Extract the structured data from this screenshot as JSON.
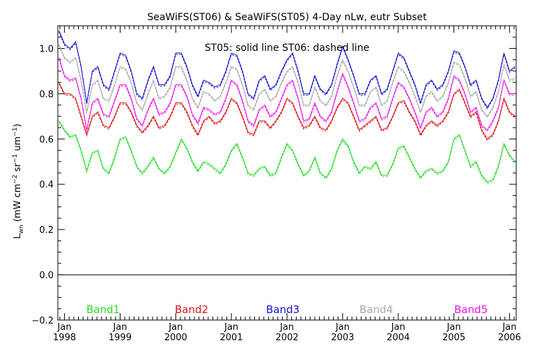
{
  "chart_data": {
    "type": "line",
    "title": "SeaWiFS(ST06) & SeaWiFS(ST05) 4-Day nLw, eutr Subset",
    "ylabel_main": "L",
    "ylabel_sub": "wn",
    "ylabel_rest": " (mW cm",
    "ylabel_exp1": "−2",
    "ylabel_mid": " sr",
    "ylabel_exp2": "−1",
    "ylabel_mid2": " um",
    "ylabel_exp3": "−1",
    "ylabel_end": ")",
    "annotation": "ST05: solid line    ST06: dashed line",
    "ylim": [
      -0.2,
      1.1
    ],
    "xlim": [
      1997.88,
      2006.12
    ],
    "y_ticks": [
      "1.0",
      "0.8",
      "0.6",
      "0.4",
      "0.2",
      "0.0",
      "−0.2"
    ],
    "x_ticks": [
      {
        "month": "Jan",
        "year": "1998"
      },
      {
        "month": "Jan",
        "year": "1999"
      },
      {
        "month": "Jan",
        "year": "2000"
      },
      {
        "month": "Jan",
        "year": "2001"
      },
      {
        "month": "Jan",
        "year": "2002"
      },
      {
        "month": "Jan",
        "year": "2003"
      },
      {
        "month": "Jan",
        "year": "2004"
      },
      {
        "month": "Jan",
        "year": "2005"
      },
      {
        "month": "Jan",
        "year": "2006"
      }
    ],
    "grid": false,
    "legend_position": "bottom",
    "series": [
      {
        "name": "Band1",
        "color": "#22dd22",
        "x": [
          1997.9,
          1998.0,
          1998.1,
          1998.2,
          1998.3,
          1998.4,
          1998.5,
          1998.6,
          1998.7,
          1998.8,
          1998.9,
          1999.0,
          1999.1,
          1999.2,
          1999.3,
          1999.4,
          1999.5,
          1999.6,
          1999.7,
          1999.8,
          1999.9,
          2000.0,
          2000.1,
          2000.2,
          2000.3,
          2000.4,
          2000.5,
          2000.6,
          2000.7,
          2000.8,
          2000.9,
          2001.0,
          2001.1,
          2001.2,
          2001.3,
          2001.4,
          2001.5,
          2001.6,
          2001.7,
          2001.8,
          2001.9,
          2002.0,
          2002.1,
          2002.2,
          2002.3,
          2002.4,
          2002.5,
          2002.6,
          2002.7,
          2002.8,
          2002.9,
          2003.0,
          2003.1,
          2003.2,
          2003.3,
          2003.4,
          2003.5,
          2003.6,
          2003.7,
          2003.8,
          2003.9,
          2004.0,
          2004.1,
          2004.2,
          2004.3,
          2004.4,
          2004.5,
          2004.6,
          2004.7,
          2004.8,
          2004.9,
          2005.0,
          2005.1,
          2005.2,
          2005.3,
          2005.4,
          2005.5,
          2005.6,
          2005.7,
          2005.8,
          2005.9,
          2006.0,
          2006.1
        ],
        "values": [
          0.68,
          0.64,
          0.61,
          0.62,
          0.55,
          0.46,
          0.54,
          0.55,
          0.47,
          0.45,
          0.52,
          0.6,
          0.61,
          0.55,
          0.48,
          0.45,
          0.48,
          0.52,
          0.47,
          0.45,
          0.48,
          0.54,
          0.6,
          0.56,
          0.5,
          0.46,
          0.5,
          0.49,
          0.47,
          0.45,
          0.49,
          0.55,
          0.58,
          0.52,
          0.45,
          0.44,
          0.47,
          0.48,
          0.44,
          0.45,
          0.52,
          0.58,
          0.55,
          0.49,
          0.44,
          0.46,
          0.52,
          0.45,
          0.43,
          0.47,
          0.55,
          0.6,
          0.57,
          0.5,
          0.45,
          0.48,
          0.47,
          0.5,
          0.44,
          0.44,
          0.49,
          0.56,
          0.57,
          0.52,
          0.47,
          0.43,
          0.46,
          0.47,
          0.45,
          0.46,
          0.5,
          0.6,
          0.62,
          0.55,
          0.48,
          0.5,
          0.44,
          0.41,
          0.42,
          0.48,
          0.58,
          0.53,
          0.5
        ]
      },
      {
        "name": "Band2",
        "color": "#dd1111",
        "x": [
          1997.9,
          1998.0,
          1998.1,
          1998.2,
          1998.3,
          1998.4,
          1998.5,
          1998.6,
          1998.7,
          1998.8,
          1998.9,
          1999.0,
          1999.1,
          1999.2,
          1999.3,
          1999.4,
          1999.5,
          1999.6,
          1999.7,
          1999.8,
          1999.9,
          2000.0,
          2000.1,
          2000.2,
          2000.3,
          2000.4,
          2000.5,
          2000.6,
          2000.7,
          2000.8,
          2000.9,
          2001.0,
          2001.1,
          2001.2,
          2001.3,
          2001.4,
          2001.5,
          2001.6,
          2001.7,
          2001.8,
          2001.9,
          2002.0,
          2002.1,
          2002.2,
          2002.3,
          2002.4,
          2002.5,
          2002.6,
          2002.7,
          2002.8,
          2002.9,
          2003.0,
          2003.1,
          2003.2,
          2003.3,
          2003.4,
          2003.5,
          2003.6,
          2003.7,
          2003.8,
          2003.9,
          2004.0,
          2004.1,
          2004.2,
          2004.3,
          2004.4,
          2004.5,
          2004.6,
          2004.7,
          2004.8,
          2004.9,
          2005.0,
          2005.1,
          2005.2,
          2005.3,
          2005.4,
          2005.5,
          2005.6,
          2005.7,
          2005.8,
          2005.9,
          2006.0,
          2006.1
        ],
        "values": [
          0.85,
          0.8,
          0.8,
          0.78,
          0.7,
          0.62,
          0.7,
          0.72,
          0.66,
          0.65,
          0.7,
          0.76,
          0.76,
          0.72,
          0.66,
          0.63,
          0.66,
          0.7,
          0.65,
          0.66,
          0.7,
          0.76,
          0.76,
          0.72,
          0.66,
          0.62,
          0.68,
          0.7,
          0.67,
          0.68,
          0.72,
          0.78,
          0.76,
          0.7,
          0.63,
          0.62,
          0.68,
          0.68,
          0.65,
          0.68,
          0.72,
          0.78,
          0.76,
          0.7,
          0.65,
          0.66,
          0.7,
          0.65,
          0.64,
          0.68,
          0.74,
          0.78,
          0.76,
          0.7,
          0.64,
          0.66,
          0.68,
          0.7,
          0.64,
          0.65,
          0.7,
          0.76,
          0.77,
          0.72,
          0.68,
          0.62,
          0.66,
          0.68,
          0.66,
          0.68,
          0.72,
          0.8,
          0.82,
          0.76,
          0.7,
          0.72,
          0.64,
          0.6,
          0.62,
          0.68,
          0.78,
          0.72,
          0.7
        ]
      },
      {
        "name": "Band3",
        "color": "#1111cc",
        "x": [
          1997.9,
          1998.0,
          1998.1,
          1998.2,
          1998.3,
          1998.4,
          1998.5,
          1998.6,
          1998.7,
          1998.8,
          1998.9,
          1999.0,
          1999.1,
          1999.2,
          1999.3,
          1999.4,
          1999.5,
          1999.6,
          1999.7,
          1999.8,
          1999.9,
          2000.0,
          2000.1,
          2000.2,
          2000.3,
          2000.4,
          2000.5,
          2000.6,
          2000.7,
          2000.8,
          2000.9,
          2001.0,
          2001.1,
          2001.2,
          2001.3,
          2001.4,
          2001.5,
          2001.6,
          2001.7,
          2001.8,
          2001.9,
          2002.0,
          2002.1,
          2002.2,
          2002.3,
          2002.4,
          2002.5,
          2002.6,
          2002.7,
          2002.8,
          2002.9,
          2003.0,
          2003.1,
          2003.2,
          2003.3,
          2003.4,
          2003.5,
          2003.6,
          2003.7,
          2003.8,
          2003.9,
          2004.0,
          2004.1,
          2004.2,
          2004.3,
          2004.4,
          2004.5,
          2004.6,
          2004.7,
          2004.8,
          2004.9,
          2005.0,
          2005.1,
          2005.2,
          2005.3,
          2005.4,
          2005.5,
          2005.6,
          2005.7,
          2005.8,
          2005.9,
          2006.0,
          2006.1
        ],
        "values": [
          1.08,
          1.02,
          1.0,
          1.03,
          0.92,
          0.76,
          0.9,
          0.92,
          0.84,
          0.82,
          0.9,
          0.98,
          0.97,
          0.9,
          0.8,
          0.78,
          0.86,
          0.92,
          0.84,
          0.84,
          0.88,
          0.98,
          0.98,
          0.92,
          0.84,
          0.79,
          0.86,
          0.85,
          0.83,
          0.84,
          0.9,
          0.98,
          0.97,
          0.9,
          0.8,
          0.78,
          0.86,
          0.88,
          0.82,
          0.84,
          0.9,
          0.95,
          0.98,
          0.9,
          0.8,
          0.8,
          0.88,
          0.82,
          0.8,
          0.84,
          0.93,
          1.01,
          0.95,
          0.88,
          0.8,
          0.8,
          0.86,
          0.88,
          0.8,
          0.82,
          0.9,
          0.98,
          0.96,
          0.9,
          0.84,
          0.76,
          0.84,
          0.86,
          0.82,
          0.84,
          0.9,
          0.99,
          0.98,
          0.92,
          0.84,
          0.86,
          0.78,
          0.74,
          0.78,
          0.86,
          0.98,
          0.9,
          0.92
        ]
      },
      {
        "name": "Band4",
        "color": "#aaaaaa",
        "x": [
          1997.9,
          1998.0,
          1998.1,
          1998.2,
          1998.3,
          1998.4,
          1998.5,
          1998.6,
          1998.7,
          1998.8,
          1998.9,
          1999.0,
          1999.1,
          1999.2,
          1999.3,
          1999.4,
          1999.5,
          1999.6,
          1999.7,
          1999.8,
          1999.9,
          2000.0,
          2000.1,
          2000.2,
          2000.3,
          2000.4,
          2000.5,
          2000.6,
          2000.7,
          2000.8,
          2000.9,
          2001.0,
          2001.1,
          2001.2,
          2001.3,
          2001.4,
          2001.5,
          2001.6,
          2001.7,
          2001.8,
          2001.9,
          2002.0,
          2002.1,
          2002.2,
          2002.3,
          2002.4,
          2002.5,
          2002.6,
          2002.7,
          2002.8,
          2002.9,
          2003.0,
          2003.1,
          2003.2,
          2003.3,
          2003.4,
          2003.5,
          2003.6,
          2003.7,
          2003.8,
          2003.9,
          2004.0,
          2004.1,
          2004.2,
          2004.3,
          2004.4,
          2004.5,
          2004.6,
          2004.7,
          2004.8,
          2004.9,
          2005.0,
          2005.1,
          2005.2,
          2005.3,
          2005.4,
          2005.5,
          2005.6,
          2005.7,
          2005.8,
          2005.9,
          2006.0,
          2006.1
        ],
        "values": [
          1.02,
          0.96,
          0.94,
          0.96,
          0.86,
          0.72,
          0.84,
          0.86,
          0.78,
          0.77,
          0.84,
          0.92,
          0.91,
          0.85,
          0.76,
          0.73,
          0.8,
          0.86,
          0.78,
          0.79,
          0.83,
          0.92,
          0.92,
          0.86,
          0.78,
          0.74,
          0.81,
          0.8,
          0.77,
          0.79,
          0.85,
          0.92,
          0.91,
          0.84,
          0.75,
          0.73,
          0.8,
          0.82,
          0.77,
          0.79,
          0.85,
          0.9,
          0.92,
          0.85,
          0.75,
          0.75,
          0.83,
          0.77,
          0.75,
          0.79,
          0.88,
          0.95,
          0.9,
          0.83,
          0.75,
          0.75,
          0.81,
          0.83,
          0.75,
          0.77,
          0.85,
          0.92,
          0.9,
          0.85,
          0.79,
          0.72,
          0.79,
          0.81,
          0.77,
          0.79,
          0.85,
          0.94,
          0.93,
          0.87,
          0.79,
          0.81,
          0.73,
          0.7,
          0.74,
          0.81,
          0.93,
          0.86,
          0.87
        ]
      },
      {
        "name": "Band5",
        "color": "#ee11ee",
        "x": [
          1997.9,
          1998.0,
          1998.1,
          1998.2,
          1998.3,
          1998.4,
          1998.5,
          1998.6,
          1998.7,
          1998.8,
          1998.9,
          1999.0,
          1999.1,
          1999.2,
          1999.3,
          1999.4,
          1999.5,
          1999.6,
          1999.7,
          1999.8,
          1999.9,
          2000.0,
          2000.1,
          2000.2,
          2000.3,
          2000.4,
          2000.5,
          2000.6,
          2000.7,
          2000.8,
          2000.9,
          2001.0,
          2001.1,
          2001.2,
          2001.3,
          2001.4,
          2001.5,
          2001.6,
          2001.7,
          2001.8,
          2001.9,
          2002.0,
          2002.1,
          2002.2,
          2002.3,
          2002.4,
          2002.5,
          2002.6,
          2002.7,
          2002.8,
          2002.9,
          2003.0,
          2003.1,
          2003.2,
          2003.3,
          2003.4,
          2003.5,
          2003.6,
          2003.7,
          2003.8,
          2003.9,
          2004.0,
          2004.1,
          2004.2,
          2004.3,
          2004.4,
          2004.5,
          2004.6,
          2004.7,
          2004.8,
          2004.9,
          2005.0,
          2005.1,
          2005.2,
          2005.3,
          2005.4,
          2005.5,
          2005.6,
          2005.7,
          2005.8,
          2005.9,
          2006.0,
          2006.1
        ],
        "values": [
          0.96,
          0.88,
          0.86,
          0.87,
          0.78,
          0.64,
          0.76,
          0.78,
          0.71,
          0.7,
          0.77,
          0.84,
          0.84,
          0.78,
          0.69,
          0.66,
          0.73,
          0.78,
          0.71,
          0.72,
          0.76,
          0.84,
          0.84,
          0.79,
          0.71,
          0.67,
          0.74,
          0.73,
          0.71,
          0.72,
          0.78,
          0.86,
          0.84,
          0.77,
          0.68,
          0.66,
          0.73,
          0.75,
          0.7,
          0.72,
          0.78,
          0.84,
          0.86,
          0.78,
          0.68,
          0.69,
          0.76,
          0.7,
          0.68,
          0.72,
          0.81,
          0.89,
          0.83,
          0.76,
          0.68,
          0.69,
          0.74,
          0.76,
          0.69,
          0.7,
          0.78,
          0.85,
          0.83,
          0.78,
          0.72,
          0.65,
          0.72,
          0.74,
          0.7,
          0.72,
          0.78,
          0.88,
          0.86,
          0.8,
          0.72,
          0.74,
          0.66,
          0.64,
          0.68,
          0.74,
          0.86,
          0.8,
          0.8
        ]
      }
    ]
  }
}
